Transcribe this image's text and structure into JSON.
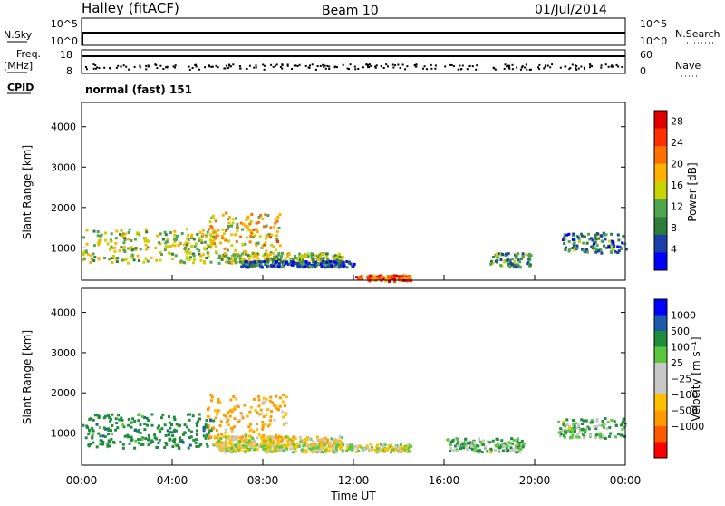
{
  "header": {
    "station": "Halley (fitACF)",
    "beam": "Beam 10",
    "date": "01/Jul/2014"
  },
  "noise_panel": {
    "left_label": "N.Sky",
    "left_ticks": [
      "10^5",
      "10^0"
    ],
    "right_label": "N.Search",
    "right_ticks": [
      "10^5",
      "10^0"
    ]
  },
  "freq_panel": {
    "left_label_1": "Freq.",
    "left_label_2": "[MHz]",
    "left_ticks": [
      "18",
      "8"
    ],
    "right_label": "Nave",
    "right_ticks": [
      "60",
      "0"
    ]
  },
  "cpid": {
    "label": "CPID",
    "value": "normal (fast) 151"
  },
  "colors": {
    "power_scale": [
      "#0000ff",
      "#1b3fa8",
      "#2e7d3a",
      "#4fa64f",
      "#c8d400",
      "#ffb000",
      "#ff7000",
      "#ff3000",
      "#e00000"
    ],
    "velocity_scale": [
      "#ff0000",
      "#ff5a00",
      "#ff9a00",
      "#ffc000",
      "#c8c8c8",
      "#c8c8c8",
      "#5ac83c",
      "#1e8c3c",
      "#1e5aaa",
      "#0000ff"
    ]
  },
  "chart_data": [
    {
      "type": "heatmap",
      "name_ref": "power",
      "ylabel": "Slant Range [km]",
      "y_ticks": [
        1000,
        2000,
        3000,
        4000
      ],
      "ylim": [
        200,
        4600
      ],
      "xlim": [
        0,
        24
      ],
      "colorbar_label": "Power [dB]",
      "colorbar_ticks": [
        "4",
        "8",
        "12",
        "16",
        "20",
        "24",
        "28"
      ],
      "colorbar_range": [
        0,
        30
      ],
      "echo_regions": [
        {
          "t0": 0.0,
          "t1": 5.8,
          "r0": 650,
          "r1": 1500,
          "value": 14
        },
        {
          "t0": 5.5,
          "t1": 8.8,
          "r0": 900,
          "r1": 1900,
          "value": 18
        },
        {
          "t0": 6.0,
          "t1": 11.5,
          "r0": 650,
          "r1": 900,
          "value": 14
        },
        {
          "t0": 7.0,
          "t1": 12.0,
          "r0": 550,
          "r1": 700,
          "value": 6
        },
        {
          "t0": 12.0,
          "t1": 14.5,
          "r0": 200,
          "r1": 350,
          "value": 24
        },
        {
          "t0": 18.0,
          "t1": 19.8,
          "r0": 550,
          "r1": 900,
          "value": 10
        },
        {
          "t0": 21.2,
          "t1": 24.0,
          "r0": 900,
          "r1": 1400,
          "value": 8
        }
      ]
    },
    {
      "type": "heatmap",
      "name_ref": "velocity",
      "ylabel": "Slant Range [km]",
      "y_ticks": [
        1000,
        2000,
        3000,
        4000
      ],
      "ylim": [
        200,
        4600
      ],
      "xlim": [
        0,
        24
      ],
      "x_ticks": [
        "00:00",
        "04:00",
        "08:00",
        "12:00",
        "16:00",
        "20:00",
        "00:00"
      ],
      "xlabel": "Time UT",
      "colorbar_label": "Velocity [m s⁻¹]",
      "colorbar_ticks": [
        "1000",
        "500",
        "100",
        "25",
        "−25",
        "−100",
        "−500",
        "−1000"
      ],
      "echo_regions": [
        {
          "t0": 0.0,
          "t1": 5.8,
          "r0": 650,
          "r1": 1500,
          "value": 300
        },
        {
          "t0": 5.5,
          "t1": 9.0,
          "r0": 900,
          "r1": 2000,
          "value": -150
        },
        {
          "t0": 5.8,
          "t1": 11.5,
          "r0": 700,
          "r1": 950,
          "value": -50
        },
        {
          "t0": 6.0,
          "t1": 14.5,
          "r0": 550,
          "r1": 750,
          "value": 0
        },
        {
          "t0": 16.0,
          "t1": 19.5,
          "r0": 550,
          "r1": 900,
          "value": 80
        },
        {
          "t0": 21.0,
          "t1": 24.0,
          "r0": 900,
          "r1": 1400,
          "value": 90
        }
      ]
    }
  ]
}
